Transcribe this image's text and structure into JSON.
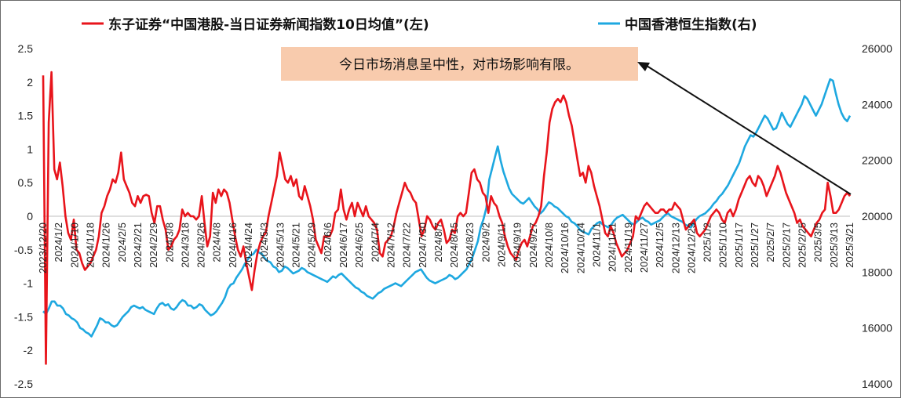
{
  "chart_data": {
    "type": "line",
    "legend": [
      {
        "name": "东子证券“中国港股-当日证券新闻指数10日均值”(左)",
        "color": "#e8141b"
      },
      {
        "name": "中国香港恒生指数(右)",
        "color": "#1ea8e0"
      }
    ],
    "annotation": "今日市场消息呈中性，对市场影响有限。",
    "annotation_bg": "#f8cbad",
    "left_axis": {
      "min": -2.5,
      "max": 2.5,
      "ticks": [
        "2.5",
        "2",
        "1.5",
        "1",
        "0.5",
        "0",
        "-0.5",
        "-1",
        "-1.5",
        "-2",
        "-2.5"
      ]
    },
    "right_axis": {
      "min": 14000,
      "max": 26000,
      "ticks": [
        "26000",
        "24000",
        "22000",
        "20000",
        "18000",
        "16000",
        "14000"
      ]
    },
    "x_labels": [
      "2023/12/20",
      "2024/1/2",
      "2024/1/10",
      "2024/1/18",
      "2024/1/26",
      "2024/2/5",
      "2024/2/21",
      "2024/2/29",
      "2024/3/8",
      "2024/3/18",
      "2024/3/26",
      "2024/4/8",
      "2024/4/16",
      "2024/4/24",
      "2024/5/3",
      "2024/5/13",
      "2024/5/21",
      "2024/5/29",
      "2024/6/6",
      "2024/6/17",
      "2024/6/25",
      "2024/7/4",
      "2024/7/12",
      "2024/7/22",
      "2024/7/30",
      "2024/8/7",
      "2024/8/15",
      "2024/8/23",
      "2024/9/2",
      "2024/9/11",
      "2024/9/19",
      "2024/9/27",
      "2024/10/8",
      "2024/10/16",
      "2024/10/24",
      "2024/11/1",
      "2024/11/11",
      "2024/11/19",
      "2024/11/27",
      "2024/12/5",
      "2024/12/13",
      "2024/12/23",
      "2025/1/2",
      "2025/1/10",
      "2025/1/17",
      "2025/1/27",
      "2025/2/7",
      "2025/2/17",
      "2025/2/25",
      "2025/3/5",
      "2025/3/13",
      "2025/3/21"
    ],
    "series": [
      {
        "name": "东子证券“中国港股-当日证券新闻指数10日均值”(左)",
        "axis": "left",
        "color": "#e8141b",
        "values": [
          2.1,
          -2.2,
          1.4,
          2.15,
          0.7,
          0.55,
          0.8,
          0.45,
          0.0,
          -0.25,
          -0.35,
          -0.05,
          -0.5,
          -0.55,
          -0.7,
          -0.8,
          -0.75,
          -0.7,
          -0.6,
          -0.5,
          -0.3,
          0.05,
          0.15,
          0.3,
          0.4,
          0.55,
          0.5,
          0.65,
          0.95,
          0.55,
          0.45,
          0.35,
          0.2,
          0.15,
          0.3,
          0.2,
          0.3,
          0.32,
          0.3,
          0.05,
          -0.1,
          0.15,
          0.15,
          -0.05,
          -0.2,
          -0.5,
          -0.45,
          -0.35,
          -0.3,
          -0.2,
          0.1,
          0.0,
          0.05,
          0.0,
          0.0,
          -0.05,
          0.0,
          0.3,
          -0.1,
          -0.45,
          -0.3,
          0.35,
          0.2,
          0.4,
          0.3,
          0.4,
          0.35,
          0.2,
          -0.05,
          -0.3,
          -0.5,
          -0.6,
          -0.45,
          -0.7,
          -0.9,
          -1.1,
          -0.8,
          -0.55,
          -0.4,
          -0.3,
          -0.25,
          0.0,
          0.2,
          0.4,
          0.6,
          0.95,
          0.75,
          0.55,
          0.5,
          0.6,
          0.45,
          0.55,
          0.3,
          0.25,
          0.45,
          0.3,
          0.15,
          -0.05,
          -0.35,
          -0.45,
          -0.55,
          -0.3,
          -0.3,
          -0.3,
          -0.2,
          0.05,
          0.1,
          0.4,
          0.1,
          -0.05,
          0.1,
          0.2,
          0.0,
          0.2,
          0.1,
          0.0,
          0.15,
          0.0,
          -0.05,
          -0.1,
          -0.2,
          -0.55,
          -0.6,
          -0.4,
          -0.35,
          -0.3,
          -0.15,
          0.05,
          0.2,
          0.35,
          0.5,
          0.4,
          0.35,
          0.25,
          0.2,
          -0.05,
          -0.3,
          -0.2,
          0.0,
          -0.05,
          -0.15,
          -0.2,
          -0.1,
          -0.05,
          -0.2,
          -0.4,
          -0.35,
          -0.2,
          -0.25,
          0.0,
          0.05,
          0.0,
          0.05,
          0.35,
          0.65,
          0.7,
          0.55,
          0.5,
          0.35,
          0.3,
          0.05,
          0.3,
          0.2,
          0.15,
          0.0,
          -0.1,
          -0.3,
          -0.45,
          -0.55,
          -0.6,
          -0.65,
          -0.5,
          -0.4,
          -0.35,
          -0.45,
          -0.3,
          -0.15,
          -0.1,
          0.0,
          0.15,
          0.6,
          0.95,
          1.4,
          1.6,
          1.7,
          1.75,
          1.7,
          1.8,
          1.7,
          1.5,
          1.35,
          1.1,
          0.85,
          0.6,
          0.65,
          0.5,
          0.75,
          0.65,
          0.45,
          0.3,
          0.15,
          -0.05,
          -0.25,
          -0.3,
          -0.15,
          -0.25,
          -0.4,
          -0.5,
          -0.6,
          -0.55,
          -0.5,
          -0.4,
          -0.3,
          0.0,
          -0.05,
          0.05,
          0.15,
          0.2,
          0.15,
          0.1,
          0.05,
          0.05,
          0.1,
          0.1,
          0.05,
          0.1,
          0.1,
          0.2,
          0.15,
          0.1,
          -0.05,
          -0.2,
          -0.15,
          -0.1,
          -0.05,
          -0.25,
          -0.3,
          -0.25,
          -0.2,
          -0.1,
          0.0,
          0.05,
          0.1,
          0.05,
          -0.05,
          -0.1,
          0.05,
          0.1,
          0.0,
          0.1,
          0.25,
          0.35,
          0.45,
          0.55,
          0.6,
          0.5,
          0.45,
          0.6,
          0.55,
          0.45,
          0.3,
          0.4,
          0.5,
          0.6,
          0.75,
          0.65,
          0.5,
          0.35,
          0.25,
          0.15,
          0.05,
          -0.1,
          -0.05,
          -0.15,
          -0.2,
          -0.25,
          -0.3,
          -0.2,
          -0.1,
          -0.05,
          0.05,
          0.1,
          0.5,
          0.3,
          0.05,
          0.05,
          0.1,
          0.2,
          0.3,
          0.35,
          0.3
        ]
      },
      {
        "name": "中国香港恒生指数(右)",
        "axis": "right",
        "color": "#1ea8e0",
        "values": [
          16600,
          16500,
          16700,
          16950,
          16950,
          16800,
          16800,
          16700,
          16500,
          16450,
          16350,
          16300,
          16200,
          16000,
          15950,
          15850,
          15800,
          15700,
          15900,
          16100,
          16350,
          16300,
          16200,
          16200,
          16100,
          16050,
          16100,
          16250,
          16400,
          16500,
          16600,
          16750,
          16800,
          16750,
          16700,
          16750,
          16650,
          16600,
          16550,
          16500,
          16700,
          16850,
          16900,
          16800,
          16850,
          16700,
          16650,
          16750,
          16900,
          17000,
          16950,
          16800,
          16800,
          16700,
          16750,
          16850,
          16800,
          16650,
          16550,
          16450,
          16500,
          16600,
          16750,
          16900,
          17100,
          17400,
          17550,
          17600,
          17800,
          17950,
          18100,
          18300,
          18450,
          18600,
          18650,
          18800,
          18700,
          18650,
          18500,
          18400,
          18350,
          18200,
          18150,
          18000,
          18050,
          18200,
          18150,
          18050,
          17950,
          18000,
          18050,
          18150,
          18100,
          18000,
          17950,
          17900,
          17850,
          17800,
          17750,
          17700,
          17650,
          17750,
          17850,
          17800,
          17900,
          17950,
          17850,
          17750,
          17650,
          17550,
          17450,
          17400,
          17300,
          17250,
          17150,
          17100,
          17050,
          17150,
          17250,
          17300,
          17400,
          17450,
          17500,
          17550,
          17600,
          17550,
          17500,
          17600,
          17700,
          17800,
          17900,
          18000,
          18050,
          18100,
          17950,
          17800,
          17700,
          17650,
          17600,
          17650,
          17700,
          17750,
          17800,
          17900,
          17850,
          17750,
          17800,
          17900,
          18000,
          18100,
          18300,
          18500,
          18800,
          19100,
          19600,
          19900,
          20300,
          21300,
          21700,
          22100,
          22500,
          22000,
          21600,
          21300,
          21000,
          20800,
          20700,
          20600,
          20500,
          20450,
          20550,
          20650,
          20500,
          20350,
          20250,
          20100,
          20200,
          20350,
          20500,
          20450,
          20350,
          20300,
          20200,
          20100,
          20000,
          19950,
          19800,
          19750,
          19650,
          19500,
          19450,
          19400,
          19350,
          19550,
          19650,
          19750,
          19800,
          19700,
          19650,
          19600,
          19700,
          19850,
          19950,
          20000,
          20050,
          19950,
          19850,
          19750,
          19700,
          19800,
          19900,
          19950,
          19850,
          19800,
          19700,
          19750,
          19800,
          19850,
          19950,
          20050,
          20100,
          20000,
          19950,
          19900,
          19850,
          19800,
          19700,
          19650,
          19600,
          19750,
          19900,
          20000,
          20050,
          20100,
          20200,
          20300,
          20450,
          20550,
          20700,
          20800,
          20950,
          21100,
          21300,
          21500,
          21700,
          21900,
          22200,
          22500,
          22700,
          22900,
          22850,
          23000,
          23200,
          23400,
          23600,
          23500,
          23300,
          23100,
          23150,
          23400,
          23700,
          23500,
          23300,
          23200,
          23400,
          23600,
          23800,
          24000,
          24300,
          24200,
          24000,
          23800,
          23600,
          23800,
          24000,
          24300,
          24600,
          24900,
          24850,
          24400,
          24000,
          23700,
          23500,
          23400,
          23600
        ]
      }
    ]
  }
}
